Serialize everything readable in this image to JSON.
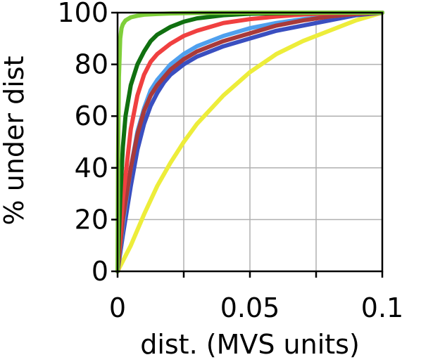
{
  "chart_data": {
    "type": "line",
    "xlabel": "dist. (MVS units)",
    "ylabel": "% under dist",
    "xlim": [
      0,
      0.1
    ],
    "ylim": [
      0,
      100
    ],
    "xticks": [
      0,
      0.025,
      0.05,
      0.075,
      0.1
    ],
    "xtick_labels": [
      "0",
      "",
      "0.05",
      "",
      "0.1"
    ],
    "yticks": [
      0,
      20,
      40,
      60,
      80,
      100
    ],
    "ytick_labels": [
      "0",
      "20",
      "40",
      "60",
      "80",
      "100"
    ],
    "grid": true,
    "legend": "none",
    "series": [
      {
        "color": "#eded3a",
        "x": [
          0,
          0.005,
          0.01,
          0.015,
          0.02,
          0.025,
          0.03,
          0.04,
          0.05,
          0.06,
          0.07,
          0.08,
          0.09,
          0.1
        ],
        "y": [
          0,
          10,
          22,
          33,
          42,
          50,
          57,
          68,
          77,
          84,
          89,
          93,
          97,
          100
        ]
      },
      {
        "color": "#3a4fc0",
        "x": [
          0,
          0.002,
          0.005,
          0.0075,
          0.01,
          0.0125,
          0.015,
          0.0175,
          0.02,
          0.025,
          0.03,
          0.04,
          0.05,
          0.06,
          0.07,
          0.08,
          0.09,
          0.1
        ],
        "y": [
          0,
          14,
          33,
          47,
          57,
          64,
          69,
          73,
          76,
          80,
          83,
          87,
          90,
          93,
          95,
          97,
          99,
          100
        ]
      },
      {
        "color": "#4fa0ee",
        "x": [
          0,
          0.002,
          0.005,
          0.0075,
          0.01,
          0.0125,
          0.015,
          0.0175,
          0.02,
          0.025,
          0.03,
          0.04,
          0.05,
          0.06,
          0.07,
          0.08,
          0.09,
          0.1
        ],
        "y": [
          0,
          18,
          40,
          54,
          63,
          70,
          74,
          77,
          80,
          84,
          87,
          91,
          94,
          96,
          97.5,
          98.5,
          99.5,
          100
        ]
      },
      {
        "color": "#a83a3a",
        "x": [
          0,
          0.002,
          0.005,
          0.0075,
          0.01,
          0.0125,
          0.015,
          0.0175,
          0.02,
          0.025,
          0.03,
          0.04,
          0.05,
          0.06,
          0.07,
          0.08,
          0.09,
          0.1
        ],
        "y": [
          0,
          20,
          40,
          53,
          62,
          68,
          72,
          75,
          78,
          82,
          85,
          89,
          92,
          95,
          97,
          98.5,
          99.5,
          100
        ]
      },
      {
        "color": "#f04040",
        "x": [
          0,
          0.002,
          0.005,
          0.0075,
          0.01,
          0.0125,
          0.015,
          0.02,
          0.025,
          0.03,
          0.04,
          0.05,
          0.06,
          0.07,
          0.08,
          0.1
        ],
        "y": [
          0,
          28,
          55,
          68,
          76,
          81,
          84,
          88,
          91,
          93,
          96,
          97.5,
          98.5,
          99.3,
          99.8,
          100
        ]
      },
      {
        "color": "#107010",
        "x": [
          0,
          0.001,
          0.002,
          0.003,
          0.005,
          0.0075,
          0.01,
          0.0125,
          0.015,
          0.02,
          0.025,
          0.03,
          0.04,
          0.05,
          0.06,
          0.08,
          0.1
        ],
        "y": [
          0,
          28,
          48,
          60,
          72,
          80,
          85,
          89,
          91.5,
          94.5,
          96.5,
          97.8,
          99,
          99.6,
          99.8,
          100,
          100
        ]
      },
      {
        "color": "#7fcf3a",
        "x": [
          0,
          0.0002,
          0.0005,
          0.001,
          0.0015,
          0.002,
          0.003,
          0.005,
          0.0075,
          0.01,
          0.015,
          0.02,
          0.03,
          0.05,
          0.1
        ],
        "y": [
          0,
          45,
          75,
          90,
          94,
          95.5,
          97,
          98.2,
          98.8,
          99.2,
          99.5,
          99.7,
          99.9,
          100,
          100
        ]
      }
    ]
  }
}
